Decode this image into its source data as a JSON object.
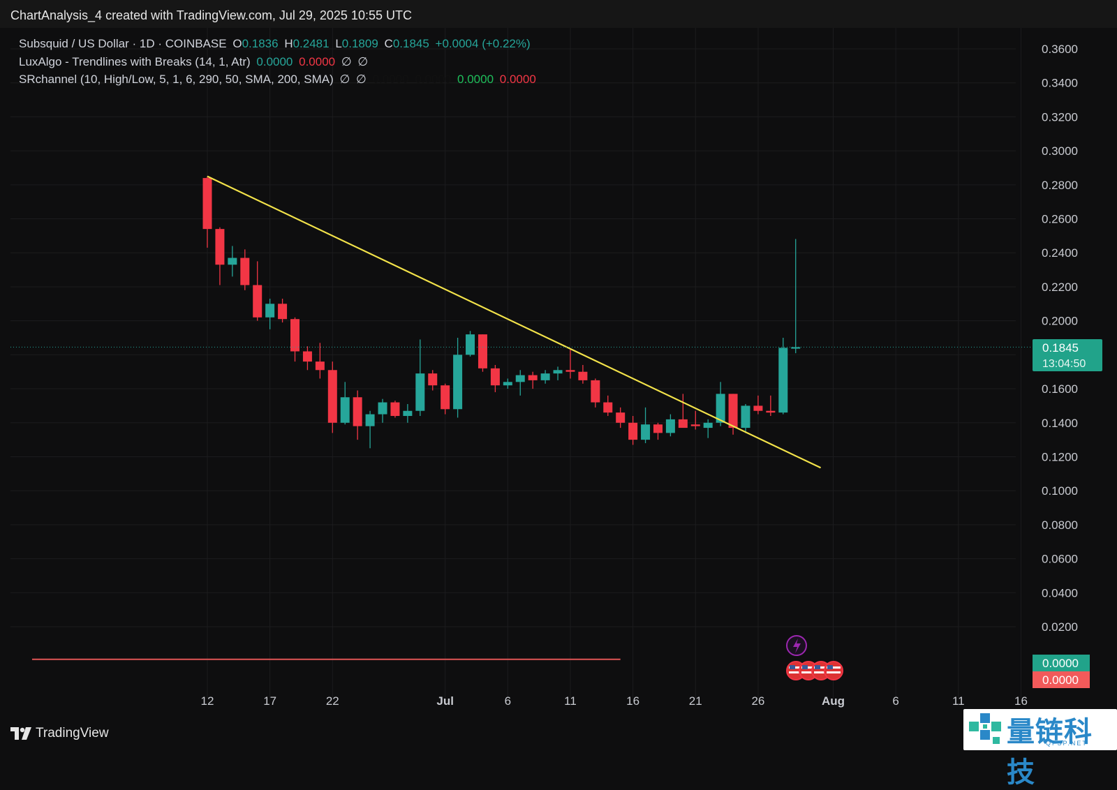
{
  "header": {
    "text": "ChartAnalysis_4 created with TradingView.com, Jul 29, 2025 10:55 UTC"
  },
  "legend": {
    "symbol": "Subsquid / US Dollar · 1D · COINBASE",
    "o_label": "O",
    "o_value": "0.1836",
    "h_label": "H",
    "h_value": "0.2481",
    "l_label": "L",
    "l_value": "0.1809",
    "c_label": "C",
    "c_value": "0.1845",
    "change": "+0.0004 (+0.22%)",
    "indicator1": "LuxAlgo - Trendlines with Breaks (14, 1, Atr)",
    "indicator1_v1": "0.0000",
    "indicator1_v2": "0.0000",
    "indicator2": "SRchannel (10, High/Low, 5, 1, 6, 290, 50, SMA, 200, SMA)",
    "indicator2_v1": "0.0000",
    "indicator2_v2": "0.0000",
    "indicator2_v3": "0.0000",
    "indicator2_v4": "0.0000",
    "hidden_icon": "∅"
  },
  "price_tag": {
    "price": "0.1845",
    "countdown": "13:04:50"
  },
  "zero_tags": {
    "upper": "0.0000",
    "lower": "0.0000"
  },
  "brand": {
    "name": "TradingView"
  },
  "watermark": {
    "title": "量链科技",
    "subtitle": "QFSP.NET"
  },
  "colors": {
    "up": "#26a69a",
    "down": "#f23645",
    "trendline": "#f3e34a",
    "background": "#0e0e0f"
  },
  "chart_data": {
    "type": "candlestick",
    "title": "Subsquid / US Dollar · 1D · COINBASE",
    "ylim": [
      0.0,
      0.37
    ],
    "y_ticks": [
      "0.3600",
      "0.3400",
      "0.3200",
      "0.3000",
      "0.2800",
      "0.2600",
      "0.2400",
      "0.2200",
      "0.2000",
      "0.1800",
      "0.1600",
      "0.1400",
      "0.1200",
      "0.1000",
      "0.0800",
      "0.0600",
      "0.0400",
      "0.0200"
    ],
    "x_ticks": [
      {
        "date": "2025-06-12",
        "label": "12"
      },
      {
        "date": "2025-06-17",
        "label": "17"
      },
      {
        "date": "2025-06-22",
        "label": "22"
      },
      {
        "date": "2025-07-01",
        "label": "Jul"
      },
      {
        "date": "2025-07-06",
        "label": "6"
      },
      {
        "date": "2025-07-11",
        "label": "11"
      },
      {
        "date": "2025-07-16",
        "label": "16"
      },
      {
        "date": "2025-07-21",
        "label": "21"
      },
      {
        "date": "2025-07-26",
        "label": "26"
      },
      {
        "date": "2025-08-01",
        "label": "Aug"
      },
      {
        "date": "2025-08-06",
        "label": "6"
      },
      {
        "date": "2025-08-11",
        "label": "11"
      },
      {
        "date": "2025-08-16",
        "label": "16"
      }
    ],
    "candles": [
      {
        "date": "2025-06-12",
        "o": 0.284,
        "h": 0.285,
        "l": 0.243,
        "c": 0.254
      },
      {
        "date": "2025-06-13",
        "o": 0.254,
        "h": 0.255,
        "l": 0.221,
        "c": 0.233
      },
      {
        "date": "2025-06-14",
        "o": 0.233,
        "h": 0.244,
        "l": 0.226,
        "c": 0.237
      },
      {
        "date": "2025-06-15",
        "o": 0.237,
        "h": 0.242,
        "l": 0.218,
        "c": 0.221
      },
      {
        "date": "2025-06-16",
        "o": 0.221,
        "h": 0.235,
        "l": 0.2,
        "c": 0.202
      },
      {
        "date": "2025-06-17",
        "o": 0.202,
        "h": 0.213,
        "l": 0.195,
        "c": 0.21
      },
      {
        "date": "2025-06-18",
        "o": 0.21,
        "h": 0.213,
        "l": 0.199,
        "c": 0.201
      },
      {
        "date": "2025-06-19",
        "o": 0.201,
        "h": 0.202,
        "l": 0.176,
        "c": 0.182
      },
      {
        "date": "2025-06-20",
        "o": 0.182,
        "h": 0.185,
        "l": 0.171,
        "c": 0.176
      },
      {
        "date": "2025-06-21",
        "o": 0.176,
        "h": 0.187,
        "l": 0.166,
        "c": 0.171
      },
      {
        "date": "2025-06-22",
        "o": 0.171,
        "h": 0.176,
        "l": 0.134,
        "c": 0.14
      },
      {
        "date": "2025-06-23",
        "o": 0.14,
        "h": 0.164,
        "l": 0.139,
        "c": 0.155
      },
      {
        "date": "2025-06-24",
        "o": 0.155,
        "h": 0.159,
        "l": 0.13,
        "c": 0.138
      },
      {
        "date": "2025-06-25",
        "o": 0.138,
        "h": 0.147,
        "l": 0.125,
        "c": 0.145
      },
      {
        "date": "2025-06-26",
        "o": 0.145,
        "h": 0.154,
        "l": 0.14,
        "c": 0.152
      },
      {
        "date": "2025-06-27",
        "o": 0.152,
        "h": 0.153,
        "l": 0.143,
        "c": 0.144
      },
      {
        "date": "2025-06-28",
        "o": 0.144,
        "h": 0.151,
        "l": 0.14,
        "c": 0.147
      },
      {
        "date": "2025-06-29",
        "o": 0.147,
        "h": 0.189,
        "l": 0.144,
        "c": 0.169
      },
      {
        "date": "2025-06-30",
        "o": 0.169,
        "h": 0.171,
        "l": 0.159,
        "c": 0.162
      },
      {
        "date": "2025-07-01",
        "o": 0.162,
        "h": 0.163,
        "l": 0.145,
        "c": 0.148
      },
      {
        "date": "2025-07-02",
        "o": 0.148,
        "h": 0.19,
        "l": 0.143,
        "c": 0.18
      },
      {
        "date": "2025-07-03",
        "o": 0.18,
        "h": 0.194,
        "l": 0.179,
        "c": 0.192
      },
      {
        "date": "2025-07-04",
        "o": 0.192,
        "h": 0.192,
        "l": 0.17,
        "c": 0.172
      },
      {
        "date": "2025-07-05",
        "o": 0.172,
        "h": 0.174,
        "l": 0.158,
        "c": 0.162
      },
      {
        "date": "2025-07-06",
        "o": 0.162,
        "h": 0.166,
        "l": 0.16,
        "c": 0.164
      },
      {
        "date": "2025-07-07",
        "o": 0.164,
        "h": 0.171,
        "l": 0.156,
        "c": 0.168
      },
      {
        "date": "2025-07-08",
        "o": 0.168,
        "h": 0.17,
        "l": 0.16,
        "c": 0.165
      },
      {
        "date": "2025-07-09",
        "o": 0.165,
        "h": 0.171,
        "l": 0.163,
        "c": 0.169
      },
      {
        "date": "2025-07-10",
        "o": 0.169,
        "h": 0.173,
        "l": 0.165,
        "c": 0.171
      },
      {
        "date": "2025-07-11",
        "o": 0.171,
        "h": 0.183,
        "l": 0.166,
        "c": 0.17
      },
      {
        "date": "2025-07-12",
        "o": 0.17,
        "h": 0.174,
        "l": 0.163,
        "c": 0.165
      },
      {
        "date": "2025-07-13",
        "o": 0.165,
        "h": 0.166,
        "l": 0.149,
        "c": 0.152
      },
      {
        "date": "2025-07-14",
        "o": 0.152,
        "h": 0.156,
        "l": 0.144,
        "c": 0.146
      },
      {
        "date": "2025-07-15",
        "o": 0.146,
        "h": 0.149,
        "l": 0.137,
        "c": 0.14
      },
      {
        "date": "2025-07-16",
        "o": 0.14,
        "h": 0.144,
        "l": 0.127,
        "c": 0.13
      },
      {
        "date": "2025-07-17",
        "o": 0.13,
        "h": 0.149,
        "l": 0.128,
        "c": 0.139
      },
      {
        "date": "2025-07-18",
        "o": 0.139,
        "h": 0.14,
        "l": 0.13,
        "c": 0.134
      },
      {
        "date": "2025-07-19",
        "o": 0.134,
        "h": 0.145,
        "l": 0.132,
        "c": 0.142
      },
      {
        "date": "2025-07-20",
        "o": 0.142,
        "h": 0.157,
        "l": 0.139,
        "c": 0.137
      },
      {
        "date": "2025-07-21",
        "o": 0.139,
        "h": 0.147,
        "l": 0.136,
        "c": 0.138
      },
      {
        "date": "2025-07-22",
        "o": 0.137,
        "h": 0.142,
        "l": 0.131,
        "c": 0.14
      },
      {
        "date": "2025-07-23",
        "o": 0.14,
        "h": 0.164,
        "l": 0.138,
        "c": 0.157
      },
      {
        "date": "2025-07-24",
        "o": 0.157,
        "h": 0.157,
        "l": 0.133,
        "c": 0.137
      },
      {
        "date": "2025-07-25",
        "o": 0.137,
        "h": 0.151,
        "l": 0.134,
        "c": 0.15
      },
      {
        "date": "2025-07-26",
        "o": 0.15,
        "h": 0.156,
        "l": 0.145,
        "c": 0.147
      },
      {
        "date": "2025-07-27",
        "o": 0.147,
        "h": 0.156,
        "l": 0.144,
        "c": 0.146
      },
      {
        "date": "2025-07-28",
        "o": 0.146,
        "h": 0.19,
        "l": 0.145,
        "c": 0.1841
      },
      {
        "date": "2025-07-29",
        "o": 0.1836,
        "h": 0.2481,
        "l": 0.1809,
        "c": 0.1845
      }
    ],
    "trendline": {
      "from": {
        "date": "2025-06-12",
        "price": 0.285
      },
      "to": {
        "date": "2025-07-31",
        "price": 0.1135
      }
    },
    "sr_zero_line": {
      "from": "2025-05-29",
      "to": "2025-07-15",
      "price": 0.0
    },
    "current_price": 0.1845
  }
}
